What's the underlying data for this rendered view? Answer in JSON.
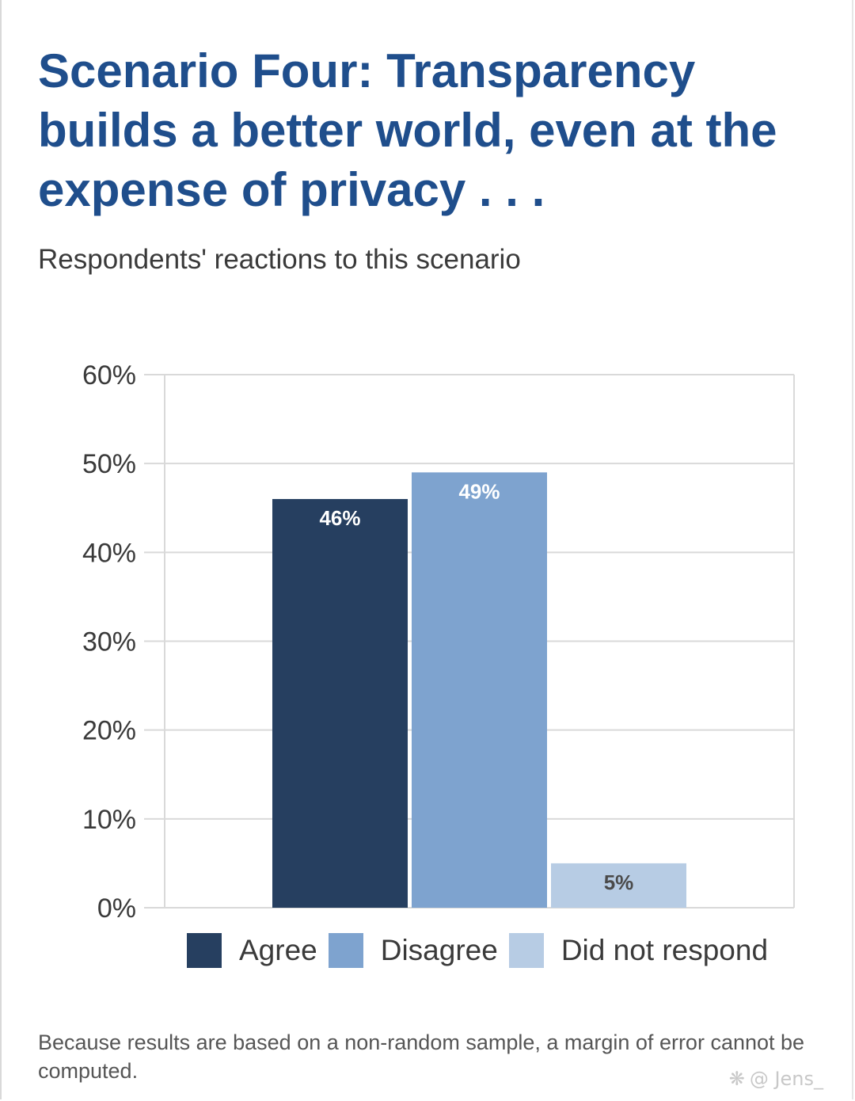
{
  "title": "Scenario Four: Transparency builds a better world, even at the expense of privacy . . .",
  "subtitle": "Respondents' reactions to this scenario",
  "footnote": "Because results are based on a non-random sample, a margin of error cannot be computed.",
  "watermark": {
    "text": "@ Jens_",
    "icon": "watermark-logo-icon"
  },
  "colors": {
    "title": "#1f4e8c",
    "agree": "#263f60",
    "disagree": "#7ea3cf",
    "did_not_respond": "#b7cce4",
    "grid": "#d9d9d9"
  },
  "chart_data": {
    "type": "bar",
    "title": "",
    "xlabel": "",
    "ylabel": "",
    "ylim": [
      0,
      60
    ],
    "yticks": [
      0,
      10,
      20,
      30,
      40,
      50,
      60
    ],
    "ytick_labels": [
      "0%",
      "10%",
      "20%",
      "30%",
      "40%",
      "50%",
      "60%"
    ],
    "grid": true,
    "legend_position": "bottom",
    "series": [
      {
        "name": "Agree",
        "values": [
          46
        ],
        "label": "46%",
        "color": "#263f60",
        "label_color": "#ffffff"
      },
      {
        "name": "Disagree",
        "values": [
          49
        ],
        "label": "49%",
        "color": "#7ea3cf",
        "label_color": "#ffffff"
      },
      {
        "name": "Did not respond",
        "values": [
          5
        ],
        "label": "5%",
        "color": "#b7cce4",
        "label_color": "#4a4a4a"
      }
    ]
  }
}
